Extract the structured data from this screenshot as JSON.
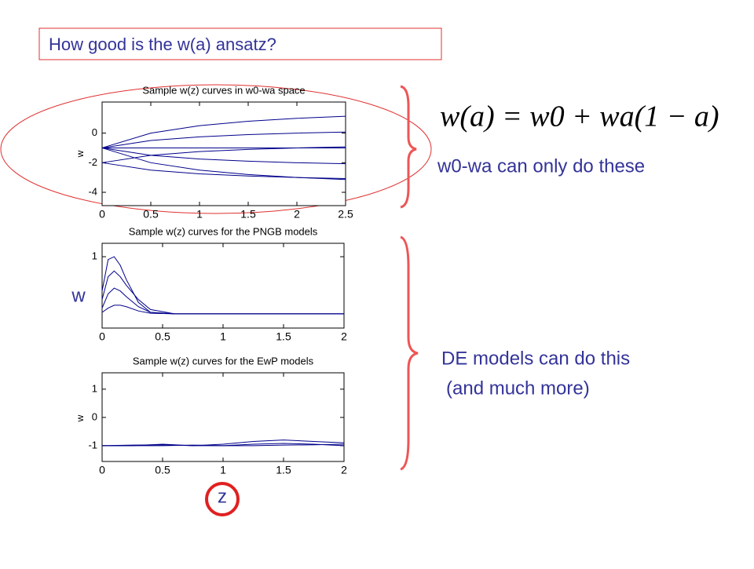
{
  "slide": {
    "title": "How good is the w(a) ansatz?",
    "equation": "w(a) = w0 + wa(1 − a)",
    "note_top": "w0-wa can only do these",
    "note_bottom": [
      "DE models can do this",
      "(and much more)"
    ]
  },
  "chart_data": [
    {
      "type": "line",
      "title": "Sample w(z) curves in w0-wa space",
      "ylabel": "w",
      "color": "#00008b",
      "x": [
        0,
        0.5,
        1,
        1.5,
        2,
        2.5
      ],
      "series": [
        {
          "values": [
            -1,
            0,
            0.5,
            0.8,
            1,
            1.14
          ]
        },
        {
          "values": [
            -1,
            -0.5,
            -0.25,
            -0.1,
            0,
            0.07
          ]
        },
        {
          "values": [
            -1,
            -1,
            -1,
            -1,
            -1,
            -1
          ]
        },
        {
          "values": [
            -1,
            -1.5,
            -1.75,
            -1.9,
            -2,
            -2.07
          ]
        },
        {
          "values": [
            -1,
            -2,
            -2.5,
            -2.8,
            -3,
            -3.14
          ]
        },
        {
          "values": [
            -2,
            -1.5,
            -1.25,
            -1.1,
            -1,
            -0.93
          ]
        },
        {
          "values": [
            -2,
            -2.5,
            -2.75,
            -2.9,
            -3,
            -3.07
          ]
        }
      ],
      "xlim": [
        0,
        2.5
      ],
      "xticks": [
        0,
        0.5,
        1,
        1.5,
        2,
        2.5
      ],
      "ylim": [
        -4.9,
        2.1
      ],
      "yticks": [
        -4,
        -2,
        0
      ]
    },
    {
      "type": "line",
      "title": "Sample w(z) curves for the PNGB models",
      "ylabel": "w",
      "color": "#00008b",
      "x": [
        0,
        0.05,
        0.1,
        0.15,
        0.2,
        0.3,
        0.4,
        0.6,
        2
      ],
      "series": [
        {
          "values": [
            -0.2,
            0.9,
            1,
            0.7,
            0.2,
            -0.6,
            -0.95,
            -1,
            -1
          ]
        },
        {
          "values": [
            -0.5,
            0.3,
            0.5,
            0.3,
            0,
            -0.5,
            -0.85,
            -1,
            -1
          ]
        },
        {
          "values": [
            -0.8,
            -0.3,
            -0.1,
            -0.2,
            -0.4,
            -0.75,
            -0.95,
            -1,
            -1
          ]
        },
        {
          "values": [
            -0.95,
            -0.8,
            -0.7,
            -0.7,
            -0.75,
            -0.9,
            -0.98,
            -1,
            -1
          ]
        }
      ],
      "xlim": [
        0,
        2
      ],
      "xticks": [
        0,
        0.5,
        1,
        1.5,
        2
      ],
      "ylim": [
        -1.5,
        1.47
      ],
      "yticks": [
        1
      ]
    },
    {
      "type": "line",
      "title": "Sample w(z) curves for the EwP models",
      "ylabel": "w",
      "xlabel": "z",
      "color": "#00008b",
      "x": [
        0,
        0.25,
        0.5,
        0.75,
        1,
        1.25,
        1.5,
        1.75,
        2
      ],
      "series": [
        {
          "values": [
            -1,
            -1,
            -0.95,
            -1,
            -0.95,
            -0.85,
            -0.8,
            -0.85,
            -0.9
          ]
        },
        {
          "values": [
            -1,
            -1,
            -1,
            -0.98,
            -1,
            -0.95,
            -0.92,
            -0.95,
            -1
          ]
        },
        {
          "values": [
            -1,
            -0.98,
            -0.97,
            -1,
            -1,
            -1,
            -0.98,
            -0.97,
            -0.95
          ]
        }
      ],
      "xlim": [
        0,
        2
      ],
      "xticks": [
        0,
        0.5,
        1,
        1.5,
        2
      ],
      "ylim": [
        -1.56,
        1.58
      ],
      "yticks": [
        -1,
        0,
        1
      ]
    }
  ]
}
